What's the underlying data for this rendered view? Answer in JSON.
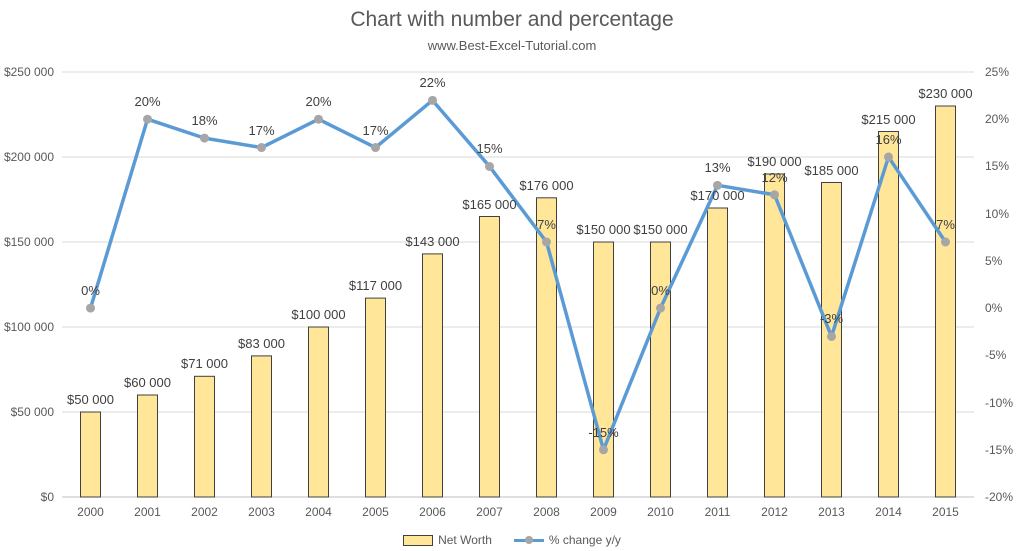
{
  "header": {
    "title": "Chart with number and percentage",
    "subtitle": "www.Best-Excel-Tutorial.com"
  },
  "colors": {
    "bar_fill": "#FFE699",
    "bar_border": "#404040",
    "line": "#5B9BD5",
    "marker": "#A6A6A6",
    "gridline": "#D9D9D9",
    "axis_line": "#BFBFBF",
    "title_text": "#595959",
    "axis_text": "#595959",
    "data_label_text": "#404040"
  },
  "chart_data": {
    "type": "combo-bar-line",
    "title": "Chart with number and percentage",
    "subtitle": "www.Best-Excel-Tutorial.com",
    "categories": [
      "2000",
      "2001",
      "2002",
      "2003",
      "2004",
      "2005",
      "2006",
      "2007",
      "2008",
      "2009",
      "2010",
      "2011",
      "2012",
      "2013",
      "2014",
      "2015"
    ],
    "series": [
      {
        "name": "Net Worth",
        "type": "bar",
        "axis": "left",
        "values": [
          50000,
          60000,
          71000,
          83000,
          100000,
          117000,
          143000,
          165000,
          176000,
          150000,
          150000,
          170000,
          190000,
          185000,
          215000,
          230000
        ],
        "labels": [
          "$50 000",
          "$60 000",
          "$71 000",
          "$83 000",
          "$100 000",
          "$117 000",
          "$143 000",
          "$165 000",
          "$176 000",
          "$150 000",
          "$150 000",
          "$170 000",
          "$190 000",
          "$185 000",
          "$215 000",
          "$230 000"
        ]
      },
      {
        "name": "% change y/y",
        "type": "line",
        "axis": "right",
        "values": [
          0,
          20,
          18,
          17,
          20,
          17,
          22,
          15,
          7,
          -15,
          0,
          13,
          12,
          -3,
          16,
          7
        ],
        "labels": [
          "0%",
          "20%",
          "18%",
          "17%",
          "20%",
          "17%",
          "22%",
          "15%",
          "7%",
          "-15%",
          "0%",
          "13%",
          "12%",
          "-3%",
          "16%",
          "7%"
        ]
      }
    ],
    "left_axis": {
      "min": 0,
      "max": 250000,
      "tick_interval": 50000,
      "tick_labels": [
        "$250 000",
        "$200 000",
        "$150 000",
        "$100 000",
        "$50 000",
        "$0"
      ]
    },
    "right_axis": {
      "min": -20,
      "max": 25,
      "tick_interval": 5,
      "tick_labels": [
        "25%",
        "20%",
        "15%",
        "10%",
        "5%",
        "0%",
        "-5%",
        "-10%",
        "-15%",
        "-20%"
      ]
    },
    "grid": true,
    "legend_position": "bottom"
  }
}
